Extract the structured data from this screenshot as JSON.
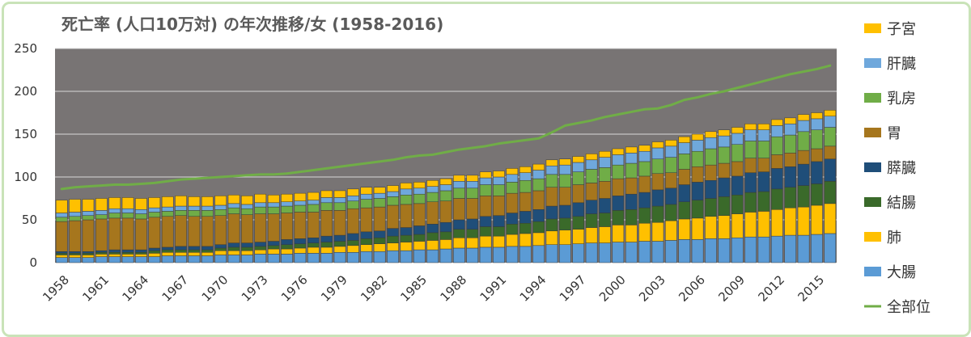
{
  "chart_data": {
    "type": "bar",
    "stacked": true,
    "title": "死亡率 (人口10万対) の年次推移/女 (1958-2016)",
    "x": [
      1958,
      1959,
      1960,
      1961,
      1962,
      1963,
      1964,
      1965,
      1966,
      1967,
      1968,
      1969,
      1970,
      1971,
      1972,
      1973,
      1974,
      1975,
      1976,
      1977,
      1978,
      1979,
      1980,
      1981,
      1982,
      1983,
      1984,
      1985,
      1986,
      1987,
      1988,
      1989,
      1990,
      1991,
      1992,
      1993,
      1994,
      1995,
      1996,
      1997,
      1998,
      1999,
      2000,
      2001,
      2002,
      2003,
      2004,
      2005,
      2006,
      2007,
      2008,
      2009,
      2010,
      2011,
      2012,
      2013,
      2014,
      2015,
      2016
    ],
    "x_tick_labels": [
      "1958",
      "1961",
      "1964",
      "1967",
      "1970",
      "1973",
      "1976",
      "1979",
      "1982",
      "1985",
      "1988",
      "1991",
      "1994",
      "1997",
      "2000",
      "2003",
      "2006",
      "2009",
      "2012",
      "2015"
    ],
    "y_tick_labels": [
      "0",
      "50",
      "100",
      "150",
      "200",
      "250"
    ],
    "ylim": [
      0,
      250
    ],
    "grid": true,
    "legend_position": "right",
    "series": [
      {
        "name": "大腸",
        "color": "#5b9bd5",
        "values": [
          6,
          6,
          6,
          7,
          7,
          7,
          7,
          7,
          8,
          8,
          8,
          8,
          9,
          9,
          9,
          10,
          10,
          10,
          11,
          11,
          11,
          12,
          12,
          13,
          13,
          14,
          14,
          15,
          15,
          16,
          17,
          17,
          18,
          18,
          19,
          19,
          20,
          21,
          21,
          22,
          23,
          23,
          24,
          24,
          25,
          25,
          26,
          27,
          27,
          28,
          28,
          29,
          30,
          30,
          31,
          32,
          32,
          33,
          34
        ]
      },
      {
        "name": "肺",
        "color": "#ffc000",
        "values": [
          3,
          3,
          3,
          3,
          3,
          3,
          3,
          4,
          4,
          4,
          4,
          4,
          5,
          5,
          5,
          5,
          6,
          6,
          6,
          7,
          7,
          7,
          8,
          8,
          9,
          9,
          10,
          10,
          11,
          11,
          12,
          12,
          13,
          13,
          14,
          15,
          15,
          16,
          17,
          17,
          18,
          19,
          20,
          20,
          21,
          22,
          23,
          24,
          25,
          26,
          27,
          28,
          29,
          30,
          31,
          32,
          33,
          34,
          35
        ]
      },
      {
        "name": "結腸",
        "color": "#3a6a2a",
        "values": [
          2,
          2,
          2,
          2,
          2,
          2,
          2,
          3,
          3,
          3,
          3,
          3,
          3,
          4,
          4,
          4,
          4,
          5,
          5,
          5,
          6,
          6,
          6,
          7,
          7,
          8,
          8,
          8,
          9,
          9,
          10,
          10,
          11,
          11,
          12,
          12,
          13,
          14,
          14,
          15,
          16,
          16,
          17,
          18,
          18,
          19,
          19,
          20,
          21,
          21,
          22,
          22,
          23,
          23,
          24,
          24,
          25,
          25,
          26
        ]
      },
      {
        "name": "膵臓",
        "color": "#1f4e79",
        "values": [
          2,
          2,
          2,
          2,
          3,
          3,
          3,
          3,
          3,
          4,
          4,
          4,
          4,
          5,
          5,
          5,
          5,
          6,
          6,
          6,
          7,
          7,
          8,
          8,
          8,
          9,
          9,
          10,
          10,
          11,
          11,
          12,
          12,
          13,
          13,
          14,
          14,
          15,
          15,
          16,
          16,
          17,
          17,
          18,
          18,
          19,
          19,
          20,
          21,
          21,
          22,
          22,
          23,
          23,
          24,
          24,
          25,
          26,
          26
        ]
      },
      {
        "name": "胃",
        "color": "#a6761d",
        "values": [
          35,
          36,
          37,
          37,
          37,
          37,
          36,
          36,
          36,
          36,
          35,
          35,
          34,
          34,
          33,
          33,
          32,
          31,
          31,
          30,
          30,
          29,
          29,
          28,
          28,
          27,
          27,
          26,
          26,
          25,
          25,
          24,
          24,
          23,
          23,
          22,
          22,
          22,
          21,
          21,
          20,
          20,
          20,
          19,
          19,
          19,
          18,
          18,
          18,
          18,
          17,
          17,
          17,
          16,
          16,
          16,
          16,
          15,
          15
        ]
      },
      {
        "name": "乳房",
        "color": "#70ad47",
        "values": [
          5,
          5,
          5,
          5,
          6,
          6,
          6,
          6,
          6,
          6,
          7,
          7,
          7,
          7,
          7,
          8,
          8,
          8,
          8,
          9,
          9,
          9,
          9,
          10,
          10,
          10,
          11,
          11,
          11,
          12,
          12,
          12,
          13,
          13,
          13,
          14,
          14,
          15,
          15,
          15,
          16,
          16,
          16,
          17,
          17,
          17,
          18,
          18,
          18,
          19,
          19,
          20,
          20,
          20,
          21,
          21,
          22,
          22,
          22
        ]
      },
      {
        "name": "肝臓",
        "color": "#6fa8dc",
        "values": [
          5,
          5,
          5,
          5,
          5,
          5,
          5,
          5,
          5,
          5,
          5,
          5,
          5,
          5,
          5,
          5,
          5,
          5,
          5,
          5,
          6,
          6,
          6,
          6,
          6,
          6,
          7,
          7,
          7,
          7,
          8,
          8,
          8,
          9,
          9,
          9,
          10,
          10,
          11,
          11,
          11,
          12,
          12,
          12,
          12,
          13,
          13,
          13,
          13,
          13,
          13,
          13,
          13,
          13,
          13,
          13,
          13,
          13,
          13
        ]
      },
      {
        "name": "子宮",
        "color": "#ffc000",
        "values": [
          15,
          15,
          14,
          14,
          13,
          13,
          13,
          12,
          12,
          12,
          11,
          11,
          11,
          10,
          10,
          10,
          9,
          9,
          9,
          9,
          8,
          8,
          8,
          8,
          7,
          7,
          7,
          7,
          7,
          7,
          7,
          7,
          7,
          7,
          7,
          7,
          7,
          7,
          7,
          7,
          7,
          7,
          7,
          7,
          7,
          7,
          7,
          7,
          7,
          7,
          7,
          7,
          7,
          7,
          7,
          7,
          7,
          7,
          7
        ]
      }
    ],
    "line_series": {
      "name": "全部位",
      "color": "#70ad47",
      "values": [
        86,
        88,
        89,
        90,
        91,
        91,
        92,
        93,
        95,
        97,
        98,
        99,
        100,
        101,
        102,
        103,
        103,
        104,
        106,
        108,
        110,
        112,
        114,
        116,
        118,
        120,
        123,
        125,
        126,
        129,
        132,
        134,
        136,
        139,
        141,
        143,
        145,
        152,
        160,
        163,
        166,
        170,
        173,
        176,
        179,
        180,
        184,
        190,
        193,
        197,
        200,
        204,
        208,
        212,
        216,
        220,
        223,
        226,
        230
      ]
    }
  }
}
